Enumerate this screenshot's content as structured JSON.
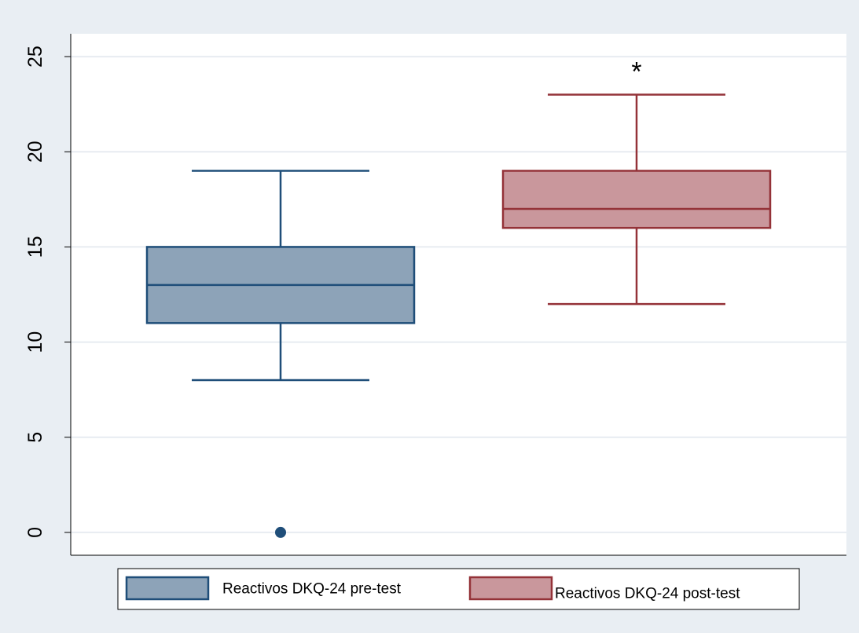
{
  "chart_data": {
    "type": "box",
    "ylim": [
      -1.2,
      26.2
    ],
    "yticks": [
      0,
      5,
      10,
      15,
      20,
      25
    ],
    "ytick_labels": [
      "0",
      "5",
      "10",
      "15",
      "20",
      "25"
    ],
    "grid": true,
    "legend_placement": "bottom",
    "series": [
      {
        "name": "Reactivos DKQ-24 pre-test",
        "whisker_low": 8,
        "q1": 11,
        "median": 13,
        "q3": 15,
        "whisker_high": 19,
        "outliers": [
          0
        ],
        "fill": "#8da3b8",
        "stroke": "#1f4e79"
      },
      {
        "name": "Reactivos DKQ-24 post-test",
        "whisker_low": 12,
        "q1": 16,
        "median": 17,
        "q3": 19,
        "whisker_high": 23,
        "outliers": [],
        "fill": "#c9979c",
        "stroke": "#943238"
      }
    ],
    "annotations": [
      {
        "text": "*",
        "series": 1,
        "y": 24.2
      }
    ]
  }
}
